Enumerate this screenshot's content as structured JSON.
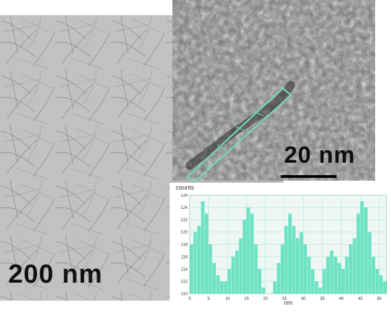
{
  "left_panel": {
    "scale_label": "200 nm"
  },
  "top_panel": {
    "scale_label": "20 nm"
  },
  "chart_data": {
    "type": "bar",
    "title": "",
    "ylabel": "counts",
    "xlabel": "nm",
    "xlim": [
      0,
      52
    ],
    "ylim": [
      110,
      126
    ],
    "x_ticks": [
      "0",
      "5",
      "10",
      "15",
      "20",
      "25",
      "30",
      "35",
      "40",
      "45",
      "50"
    ],
    "y_ticks": [
      "126",
      "124",
      "122",
      "120",
      "118",
      "116",
      "114",
      "112",
      "110"
    ],
    "grid": true,
    "legend": "none",
    "series": [
      {
        "x": [
          0,
          1,
          2,
          3,
          4,
          5,
          6,
          7,
          8,
          9,
          10,
          11,
          12,
          13,
          14,
          15,
          16,
          17,
          18,
          19,
          20,
          21,
          22,
          23,
          24,
          25,
          26,
          27,
          28,
          29,
          30,
          31,
          32,
          33,
          34,
          35,
          36,
          37,
          38,
          39,
          40,
          41,
          42,
          43,
          44,
          45,
          46,
          47,
          48,
          49,
          50,
          51
        ],
        "values": [
          118,
          120,
          121,
          125,
          123,
          118,
          115,
          113,
          112,
          112,
          114,
          116,
          117,
          119,
          122,
          124,
          123,
          118,
          114,
          111,
          110,
          110,
          112,
          115,
          118,
          121,
          123,
          121,
          119,
          120,
          118,
          116,
          114,
          112,
          111,
          114,
          116,
          117,
          116,
          115,
          114,
          116,
          118,
          119,
          123,
          125,
          124,
          120,
          116,
          114,
          113,
          112
        ]
      }
    ],
    "colors": {
      "bars": "#6ee3c3",
      "grid": "#b6e9dc",
      "plot_background": "#eef7f4"
    }
  }
}
